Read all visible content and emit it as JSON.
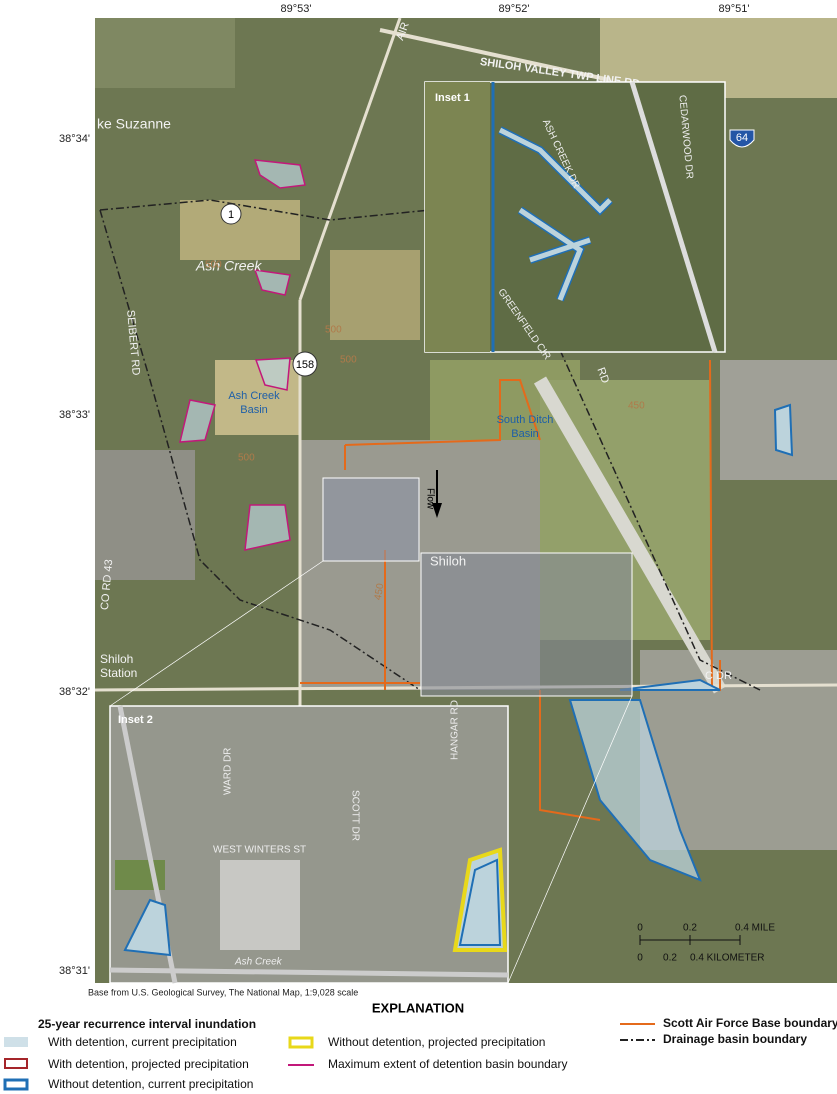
{
  "map": {
    "graticule": {
      "longitudes": [
        "89°53'",
        "89°52'",
        "89°51'"
      ],
      "latitudes": [
        "38°34'",
        "38°33'",
        "38°32'",
        "38°31'"
      ]
    },
    "labels": {
      "road_north": "SHILOH VALLEY TWP LINE RD",
      "road_air": "AIR",
      "lake": "ke Suzanne",
      "creek": "Ash Creek",
      "route_1": "1",
      "route_158": "158",
      "interstate": "64",
      "seibert_rd": "SEIBERT RD",
      "co_rd": "CO RD 43",
      "ash_creek_basin": [
        "Ash Creek",
        "Basin"
      ],
      "south_ditch_basin": [
        "South Ditch",
        "Basin"
      ],
      "flow": "Flow",
      "town": "Shiloh",
      "station": [
        "Shiloh",
        "Station"
      ],
      "c_dr": "C DR",
      "rd": "RD",
      "contours": [
        "500",
        "500",
        "500",
        "500",
        "450",
        "450"
      ]
    },
    "inset1": {
      "title": "Inset 1",
      "streets": [
        "ASH CREEK DR",
        "CEDARWOOD DR",
        "GREENFIELD CIR"
      ]
    },
    "inset2": {
      "title": "Inset 2",
      "streets": [
        "WARD DR",
        "SCOTT DR",
        "HANGAR RD",
        "WEST WINTERS ST",
        "Ash Creek"
      ]
    },
    "scale_bar": {
      "miles": [
        "0",
        "0.2",
        "0.4 MILE"
      ],
      "kilometers": [
        "0",
        "0.2",
        "0.4 KILOMETER"
      ]
    },
    "credit": "Base from U.S. Geological Survey, The National Map, 1:9,028 scale"
  },
  "legend": {
    "title": "EXPLANATION",
    "group_title": "25-year recurrence interval inundation",
    "items": [
      "With detention, current precipitation",
      "With detention, projected precipitation",
      "Without detention, current precipitation",
      "Without detention, projected precipitation",
      "Maximum extent of detention basin boundary",
      "Scott Air Force Base boundary",
      "Drainage basin boundary"
    ]
  }
}
